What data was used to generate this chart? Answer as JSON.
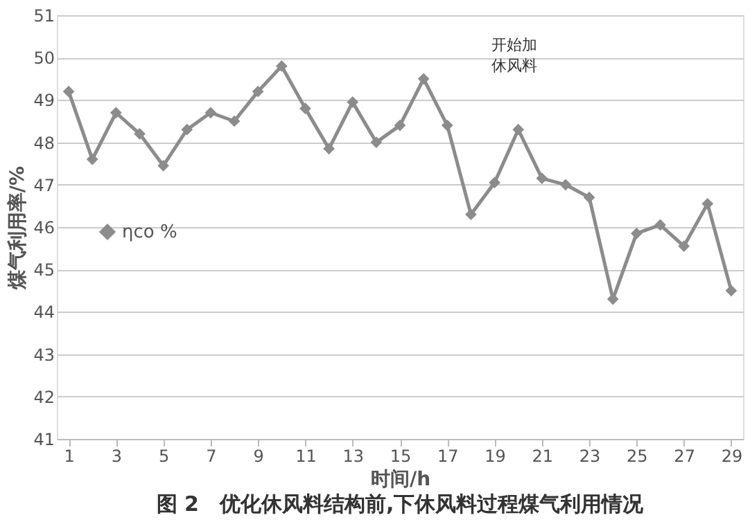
{
  "chart_data": {
    "type": "line",
    "xlabel": "时间/h",
    "ylabel": "煤气利用率/%",
    "x": [
      1,
      2,
      3,
      4,
      5,
      6,
      7,
      8,
      9,
      10,
      11,
      12,
      13,
      14,
      15,
      16,
      17,
      18,
      19,
      20,
      21,
      22,
      23,
      24,
      25,
      26,
      27,
      28,
      29
    ],
    "series": [
      {
        "name": "ηco %",
        "color": "#8c8c8c",
        "values": [
          49.2,
          47.6,
          48.7,
          48.2,
          47.45,
          48.3,
          48.7,
          48.5,
          49.2,
          49.8,
          48.8,
          47.85,
          48.95,
          48.0,
          48.4,
          49.5,
          48.4,
          46.3,
          47.05,
          48.3,
          47.15,
          47.0,
          46.7,
          44.3,
          45.85,
          46.05,
          45.55,
          46.55,
          44.5
        ]
      }
    ],
    "xlim": [
      0.5,
      29.5
    ],
    "xticks": [
      1,
      3,
      5,
      7,
      9,
      11,
      13,
      15,
      17,
      19,
      21,
      23,
      25,
      27,
      29
    ],
    "ylim": [
      41,
      51
    ],
    "yticks": [
      41,
      42,
      43,
      44,
      45,
      46,
      47,
      48,
      49,
      50,
      51
    ],
    "grid": "y",
    "legend": "left",
    "marker": "diamond",
    "line_style": "solid",
    "annotations": [
      "开始加休风料",
      "图 2　优化休风料结构前,下休风料过程煤气利用情况"
    ]
  }
}
